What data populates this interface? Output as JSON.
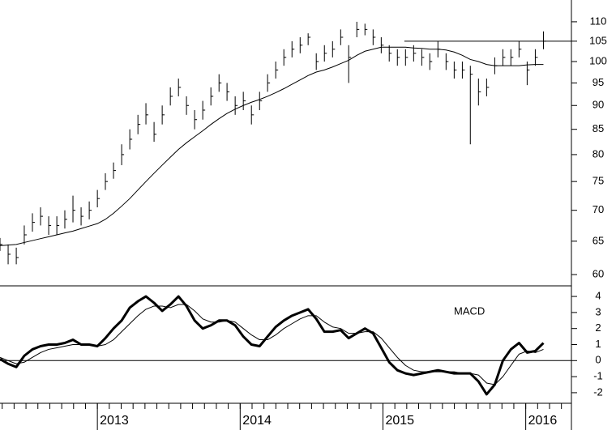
{
  "chart_data": [
    {
      "type": "ohlc",
      "scale": "log",
      "color": "#000000",
      "x": [
        2012.318,
        2012.375,
        2012.432,
        2012.488,
        2012.545,
        2012.602,
        2012.659,
        2012.716,
        2012.772,
        2012.829,
        2012.886,
        2012.943,
        2013.0,
        2013.056,
        2013.113,
        2013.17,
        2013.227,
        2013.284,
        2013.34,
        2013.397,
        2013.454,
        2013.511,
        2013.568,
        2013.624,
        2013.681,
        2013.738,
        2013.795,
        2013.852,
        2013.908,
        2013.965,
        2014.022,
        2014.079,
        2014.136,
        2014.192,
        2014.249,
        2014.306,
        2014.363,
        2014.42,
        2014.476,
        2014.533,
        2014.59,
        2014.647,
        2014.704,
        2014.76,
        2014.817,
        2014.874,
        2014.931,
        2014.988,
        2015.044,
        2015.101,
        2015.158,
        2015.215,
        2015.272,
        2015.328,
        2015.385,
        2015.442,
        2015.499,
        2015.556,
        2015.612,
        2015.669,
        2015.726,
        2015.783,
        2015.84,
        2015.896,
        2015.953,
        2016.01,
        2016.067,
        2016.124
      ],
      "high": [
        65.5,
        64.5,
        64,
        67.5,
        69.5,
        70.5,
        69,
        69,
        70,
        72.5,
        70.5,
        71.5,
        73.5,
        76.5,
        78.5,
        82,
        85,
        88,
        90.5,
        86.5,
        90,
        94,
        96,
        92,
        89,
        91,
        94,
        97,
        95,
        92,
        93,
        90,
        93,
        97,
        100,
        103,
        105,
        106,
        107,
        102,
        104,
        105,
        108,
        104,
        110,
        109.5,
        108,
        106,
        104,
        103,
        103,
        104,
        103,
        102,
        105,
        102,
        100,
        100,
        99,
        96,
        96,
        101,
        103,
        103,
        105,
        100,
        103,
        107.5
      ],
      "low": [
        63.5,
        61.5,
        61.5,
        64.5,
        66.5,
        67.5,
        66,
        66,
        67,
        68,
        67.5,
        68.5,
        70.5,
        73.5,
        75.5,
        78,
        81,
        84,
        86,
        82.5,
        86,
        90,
        92,
        88,
        85,
        87,
        90,
        93,
        91,
        88,
        89,
        86,
        89,
        93,
        96,
        99,
        101,
        102,
        104,
        98,
        100,
        101,
        104,
        95,
        106,
        106.5,
        104,
        102,
        100,
        99,
        99,
        100,
        99,
        98,
        101,
        98,
        96,
        96,
        82,
        90,
        92,
        97,
        99,
        99,
        101,
        94.5,
        99,
        103
      ],
      "close": [
        64.5,
        63,
        62.5,
        66,
        68,
        69,
        67.5,
        67.5,
        68.5,
        70,
        69,
        70,
        72,
        75,
        77,
        80,
        83,
        86,
        88,
        84,
        88,
        92,
        94,
        90,
        87,
        89,
        92,
        95,
        93,
        90,
        91,
        88,
        91,
        95,
        98,
        101,
        103,
        104,
        106,
        100,
        102,
        103,
        106,
        101,
        108,
        108,
        106,
        104,
        102,
        101,
        101,
        102,
        101,
        100,
        103,
        100,
        98,
        98,
        97,
        93,
        94,
        99,
        101,
        101,
        103,
        98,
        101,
        105
      ],
      "moving_average": {
        "color": "#000000",
        "values": [
          64.3,
          64.4,
          64.5,
          64.8,
          65.1,
          65.4,
          65.7,
          66,
          66.3,
          66.6,
          67,
          67.4,
          67.8,
          68.5,
          69.5,
          70.7,
          72,
          73.5,
          75,
          76.5,
          78,
          79.5,
          81,
          82.3,
          83.5,
          84.7,
          86,
          87.2,
          88.3,
          89.2,
          90,
          90.7,
          91.3,
          92,
          92.8,
          93.7,
          94.7,
          95.7,
          96.7,
          97.5,
          98,
          98.7,
          99.5,
          100.3,
          101.5,
          102.5,
          103,
          103.5,
          103.5,
          103.5,
          103.5,
          103.3,
          103.2,
          103,
          103,
          102.8,
          102.3,
          101.5,
          100.5,
          100,
          99.3,
          99,
          99,
          99,
          99,
          99.2,
          99.3,
          99.3
        ]
      },
      "reference_line": {
        "value": 105,
        "x_start": 2015.15
      },
      "xlim": [
        2012.318,
        2016.32
      ],
      "xticks": [
        2013,
        2014,
        2015,
        2016
      ],
      "ylim": [
        58.4,
        115.9
      ],
      "yticks": [
        60,
        65,
        70,
        75,
        80,
        85,
        90,
        95,
        100,
        105,
        110
      ]
    },
    {
      "type": "line",
      "title": "MACD",
      "zero_line": true,
      "series": [
        {
          "color": "#000000",
          "width": 3,
          "values": [
            0.1,
            -0.2,
            -0.4,
            0.3,
            0.7,
            0.9,
            1.0,
            1.0,
            1.1,
            1.3,
            1.0,
            1.0,
            0.9,
            1.4,
            2.0,
            2.5,
            3.3,
            3.7,
            4.0,
            3.6,
            3.1,
            3.5,
            4.0,
            3.4,
            2.5,
            2.0,
            2.2,
            2.5,
            2.5,
            2.2,
            1.5,
            1.0,
            0.9,
            1.5,
            2.1,
            2.5,
            2.8,
            3.0,
            3.2,
            2.6,
            1.8,
            1.8,
            1.9,
            1.4,
            1.7,
            2.0,
            1.7,
            0.8,
            -0.1,
            -0.6,
            -0.8,
            -0.9,
            -0.8,
            -0.7,
            -0.6,
            -0.7,
            -0.8,
            -0.8,
            -0.8,
            -1.3,
            -2.1,
            -1.5,
            0.0,
            0.7,
            1.1,
            0.5,
            0.6,
            1.1
          ]
        },
        {
          "color": "#000000",
          "width": 1,
          "values": [
            0.2,
            0.0,
            -0.2,
            -0.1,
            0.2,
            0.5,
            0.7,
            0.8,
            0.9,
            1.0,
            1.0,
            1.0,
            0.9,
            1.0,
            1.3,
            1.8,
            2.3,
            2.8,
            3.2,
            3.4,
            3.4,
            3.3,
            3.5,
            3.5,
            3.1,
            2.6,
            2.4,
            2.4,
            2.5,
            2.4,
            2.0,
            1.6,
            1.3,
            1.3,
            1.6,
            2.0,
            2.3,
            2.6,
            2.8,
            2.8,
            2.4,
            2.1,
            2.0,
            1.7,
            1.7,
            1.8,
            1.8,
            1.4,
            0.8,
            0.2,
            -0.3,
            -0.6,
            -0.7,
            -0.7,
            -0.7,
            -0.7,
            -0.7,
            -0.8,
            -0.8,
            -0.9,
            -1.4,
            -1.5,
            -1.0,
            -0.3,
            0.4,
            0.6,
            0.5,
            0.7
          ]
        }
      ],
      "ylim": [
        -2.66,
        4.66
      ],
      "yticks": [
        -2,
        -1,
        0,
        1,
        2,
        3,
        4
      ]
    }
  ]
}
